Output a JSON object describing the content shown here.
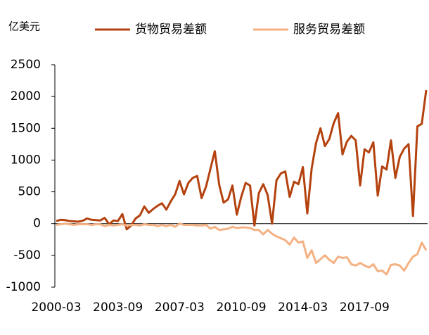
{
  "chart_data": {
    "type": "line",
    "y_label": "亿美元",
    "categories": [
      "2000-03",
      null,
      null,
      null,
      null,
      null,
      null,
      null,
      null,
      null,
      null,
      null,
      null,
      null,
      "2003-09",
      null,
      null,
      null,
      null,
      null,
      null,
      null,
      null,
      null,
      null,
      null,
      null,
      null,
      "2007-03",
      null,
      null,
      null,
      null,
      null,
      null,
      null,
      null,
      null,
      null,
      null,
      null,
      null,
      "2010-09",
      null,
      null,
      null,
      null,
      null,
      null,
      null,
      null,
      null,
      null,
      null,
      null,
      null,
      "2014-03",
      null,
      null,
      null,
      null,
      null,
      null,
      null,
      null,
      null,
      null,
      null,
      null,
      null,
      "2017-09",
      null,
      null,
      null,
      null,
      null,
      null,
      null,
      null,
      null,
      null,
      null,
      null,
      null,
      null
    ],
    "series": [
      {
        "name": "货物贸易差额",
        "color": "#b4420f",
        "values": [
          40,
          60,
          55,
          40,
          35,
          30,
          45,
          80,
          60,
          55,
          50,
          90,
          -10,
          50,
          40,
          150,
          -90,
          -30,
          80,
          130,
          270,
          170,
          230,
          280,
          320,
          220,
          350,
          460,
          670,
          460,
          640,
          720,
          750,
          400,
          580,
          860,
          1140,
          610,
          330,
          380,
          600,
          140,
          420,
          640,
          600,
          -30,
          480,
          620,
          450,
          0,
          680,
          790,
          820,
          420,
          660,
          620,
          890,
          160,
          870,
          1270,
          1500,
          1220,
          1330,
          1580,
          1740,
          1090,
          1290,
          1380,
          1310,
          600,
          1170,
          1120,
          1280,
          440,
          900,
          850,
          1310,
          720,
          1050,
          1180,
          1250,
          120,
          1530,
          1570,
          2100
        ]
      },
      {
        "name": "服务贸易差额",
        "color": "#f4b183",
        "values": [
          -20,
          -10,
          0,
          -10,
          -20,
          -10,
          -10,
          -10,
          -20,
          -10,
          -10,
          -40,
          -20,
          -30,
          -20,
          -10,
          -30,
          -20,
          -20,
          -30,
          -10,
          -20,
          -20,
          -40,
          -20,
          -40,
          -20,
          -50,
          0,
          -20,
          -20,
          -20,
          -30,
          -30,
          -20,
          -80,
          -50,
          -100,
          -90,
          -80,
          -50,
          -70,
          -60,
          -60,
          -70,
          -100,
          -100,
          -170,
          -100,
          -160,
          -200,
          -230,
          -260,
          -330,
          -220,
          -300,
          -280,
          -540,
          -420,
          -620,
          -560,
          -500,
          -570,
          -620,
          -520,
          -540,
          -530,
          -640,
          -660,
          -620,
          -660,
          -690,
          -640,
          -750,
          -740,
          -800,
          -650,
          -640,
          -660,
          -740,
          -620,
          -520,
          -480,
          -300,
          -420
        ]
      }
    ],
    "ylim": [
      -1000,
      2500
    ],
    "yticks": [
      -1000,
      -500,
      0,
      500,
      1000,
      1500,
      2000,
      2500
    ],
    "grid": false
  }
}
